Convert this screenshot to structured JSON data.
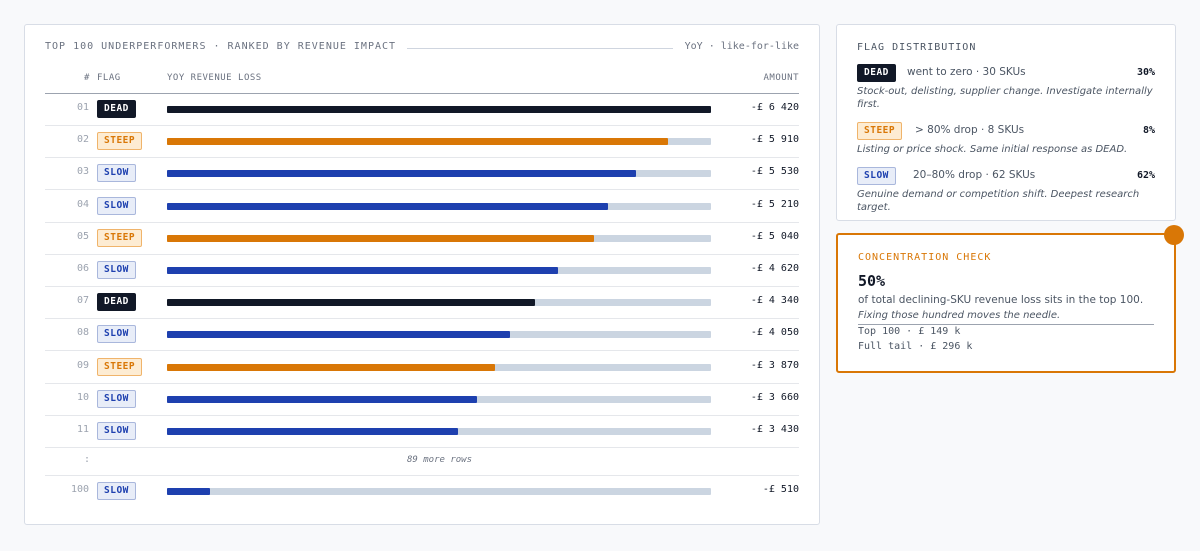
{
  "table": {
    "title": "TOP 100 UNDERPERFORMERS · RANKED BY REVENUE IMPACT",
    "note": "YoY · like-for-like",
    "columns": [
      "#",
      "FLAG",
      "YOY REVENUE LOSS",
      "AMOUNT"
    ],
    "rows": [
      {
        "rank": "01",
        "flag": "DEAD",
        "value": -6420,
        "label": "-£ 6 420"
      },
      {
        "rank": "02",
        "flag": "STEEP",
        "value": -5910,
        "label": "-£ 5 910"
      },
      {
        "rank": "03",
        "flag": "SLOW",
        "value": -5530,
        "label": "-£ 5 530"
      },
      {
        "rank": "04",
        "flag": "SLOW",
        "value": -5210,
        "label": "-£ 5 210"
      },
      {
        "rank": "05",
        "flag": "STEEP",
        "value": -5040,
        "label": "-£ 5 040"
      },
      {
        "rank": "06",
        "flag": "SLOW",
        "value": -4620,
        "label": "-£ 4 620"
      },
      {
        "rank": "07",
        "flag": "DEAD",
        "value": -4340,
        "label": "-£ 4 340"
      },
      {
        "rank": "08",
        "flag": "SLOW",
        "value": -4050,
        "label": "-£ 4 050"
      },
      {
        "rank": "09",
        "flag": "STEEP",
        "value": -3870,
        "label": "-£ 3 870"
      },
      {
        "rank": "10",
        "flag": "SLOW",
        "value": -3660,
        "label": "-£ 3 660"
      },
      {
        "rank": "11",
        "flag": "SLOW",
        "value": -3430,
        "label": "-£ 3 430"
      }
    ],
    "ellipsis": ":",
    "more": "89 more rows",
    "last_row": {
      "rank": "100",
      "flag": "SLOW",
      "value": -510,
      "label": "-£ 510"
    }
  },
  "flags": {
    "title": "FLAG DISTRIBUTION",
    "items": [
      {
        "flag": "DEAD",
        "text": "went to zero · 30 SKUs",
        "share": "30%",
        "note": "Stock-out, delisting, supplier change. Investigate internally first."
      },
      {
        "flag": "STEEP",
        "text": "> 80% drop · 8 SKUs",
        "share": "8%",
        "note": "Listing or price shock. Same initial response as DEAD."
      },
      {
        "flag": "SLOW",
        "text": "20–80% drop · 62 SKUs",
        "share": "62%",
        "note": "Genuine demand or competition shift. Deepest research target."
      }
    ]
  },
  "concentration": {
    "title": "CONCENTRATION CHECK",
    "headline": "50%",
    "text": "of total declining-SKU revenue loss sits in the top 100.",
    "note": "Fixing those hundred moves the needle.",
    "lines": [
      "Top 100 · £ 149 k",
      "Full tail · £ 296 k"
    ]
  }
}
